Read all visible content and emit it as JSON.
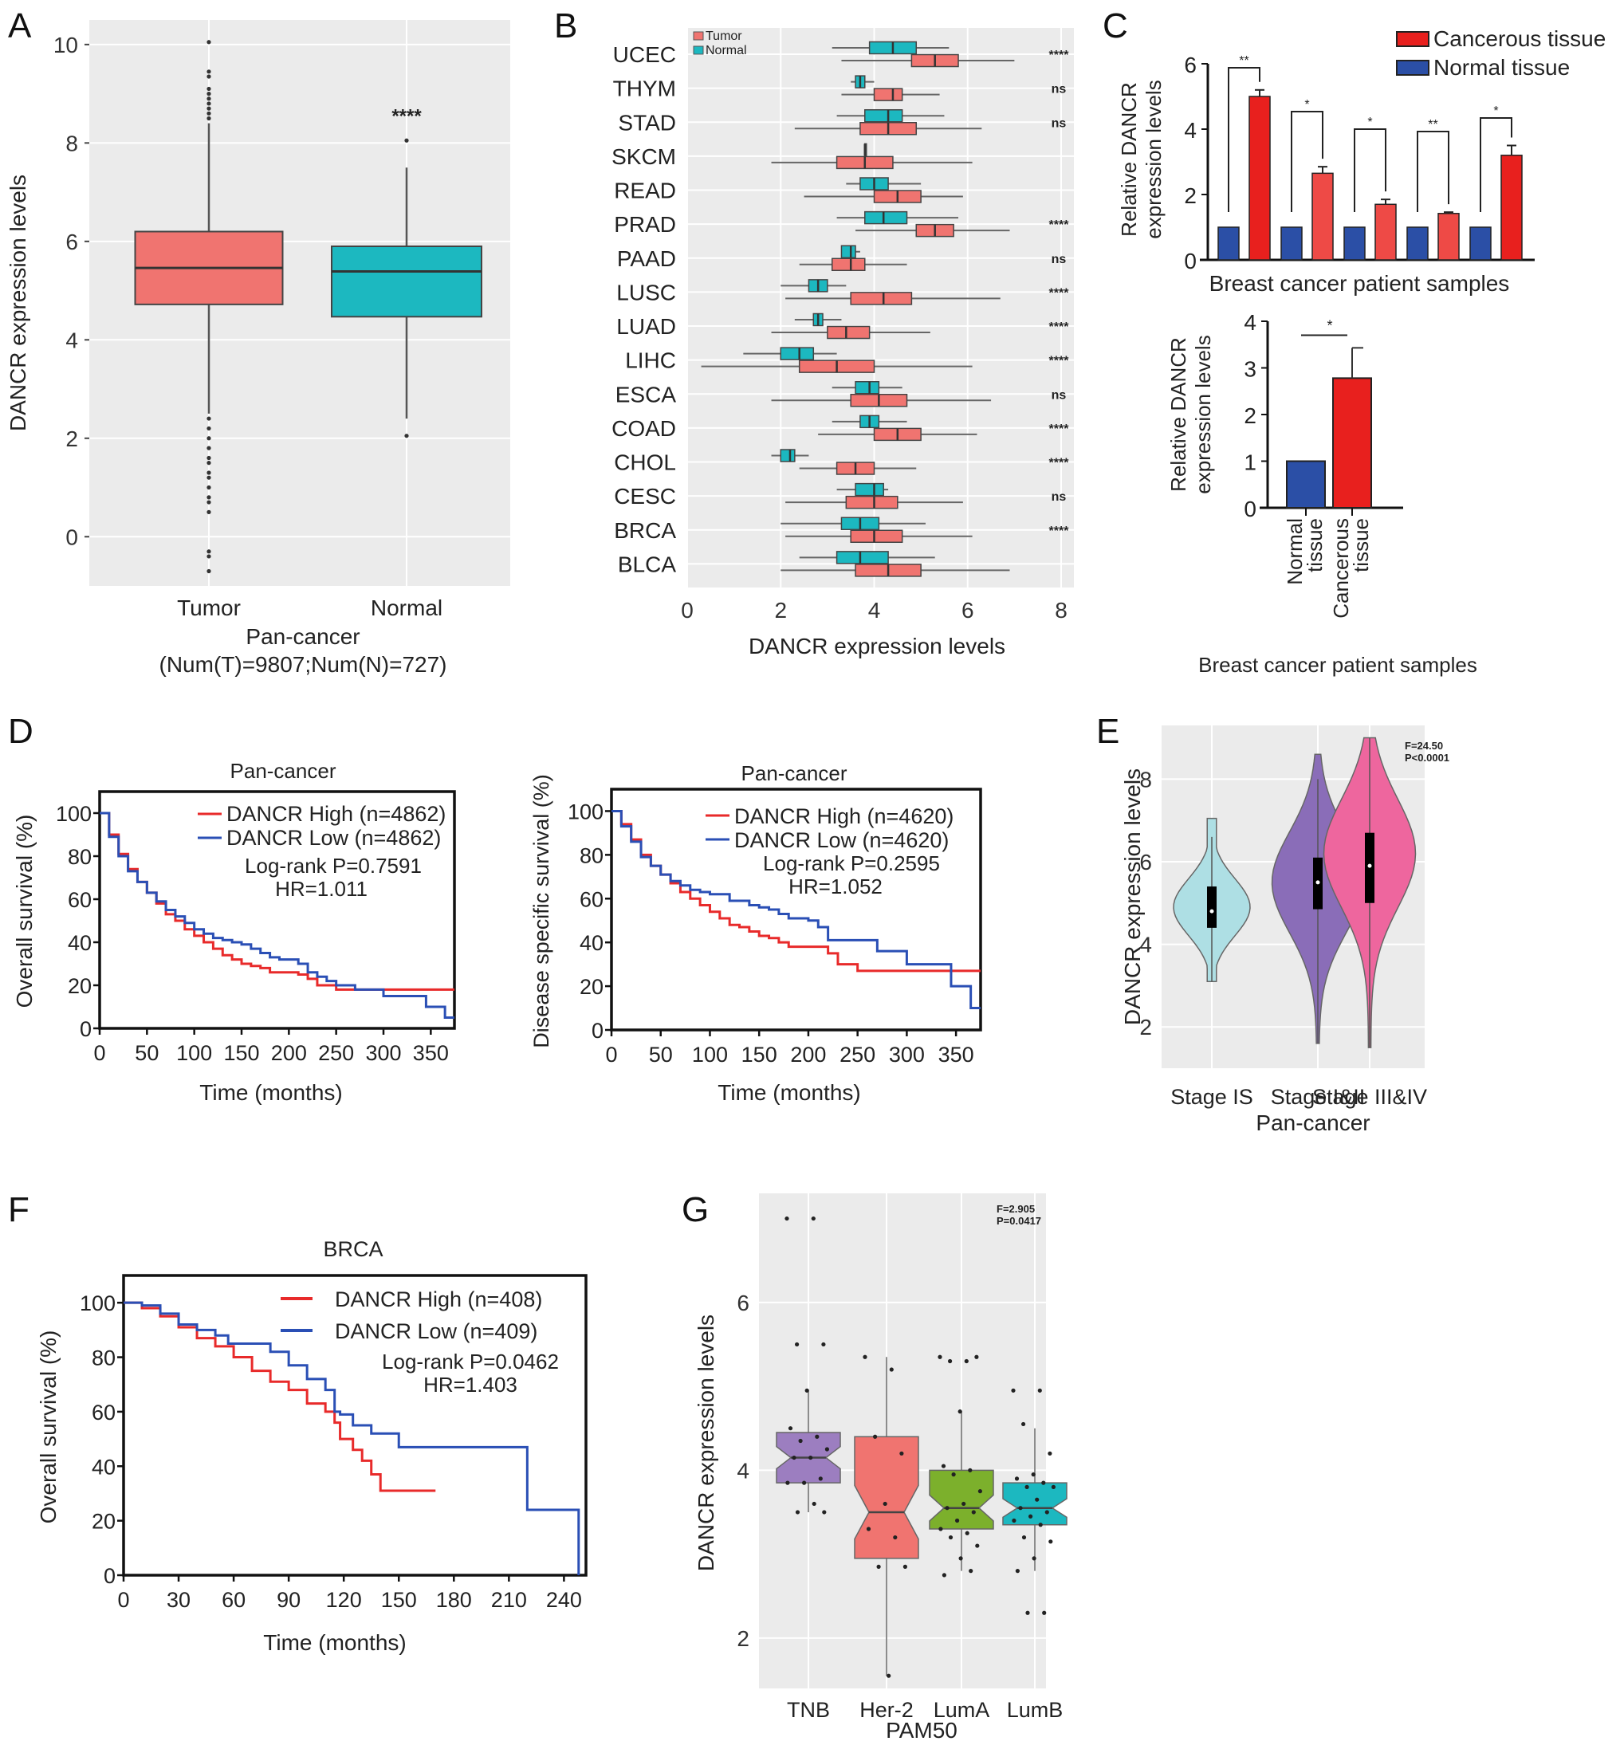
{
  "figure": {
    "panel_letters": [
      "A",
      "B",
      "C",
      "D",
      "E",
      "F",
      "G"
    ]
  },
  "colors": {
    "tumor": "#F07470",
    "normal": "#1CB8C0",
    "cancerous_bar": "#E8201E",
    "cancerous_bar_light": "#EE4A46",
    "normal_bar": "#2B4FA6",
    "km_high": "#E82A2A",
    "km_low": "#2A4FB5",
    "ggplot_bg": "#EBEBEB",
    "violin_is": "#AEDFE4",
    "violin_i_ii": "#8A6DB8",
    "violin_iii_iv": "#EE669E",
    "g_tnb": "#9C7EC0",
    "g_her2": "#F07470",
    "g_luma": "#7CB02C",
    "g_lumb": "#1CB8C0"
  },
  "chart_data": [
    {
      "id": "A",
      "type": "box",
      "title": "",
      "xlabel": "Pan-cancer",
      "xlabel2": "(Num(T)=9807;Num(N)=727)",
      "ylabel": "DANCR expression levels",
      "ylim": [
        -1,
        10.5
      ],
      "yticks": [
        0,
        2,
        4,
        6,
        8,
        10
      ],
      "categories": [
        "Tumor",
        "Normal"
      ],
      "boxes": [
        {
          "name": "Tumor",
          "q1": 4.72,
          "median": 5.46,
          "q3": 6.2,
          "whisker_low": 2.5,
          "whisker_high": 8.4,
          "outliers": [
            10.05,
            9.45,
            9.35,
            9.1,
            9.0,
            8.9,
            8.8,
            8.7,
            8.6,
            8.5,
            2.4,
            2.2,
            2.0,
            1.8,
            1.6,
            1.5,
            1.3,
            1.2,
            1.0,
            0.8,
            0.7,
            0.5,
            -0.3,
            -0.4,
            -0.7
          ]
        },
        {
          "name": "Normal",
          "q1": 4.47,
          "median": 5.39,
          "q3": 5.9,
          "whisker_low": 2.4,
          "whisker_high": 7.5,
          "outliers": [
            8.05,
            2.05
          ]
        }
      ],
      "annotation": "****",
      "annotation_y": 8.55
    },
    {
      "id": "B",
      "type": "box",
      "orientation": "horizontal",
      "xlabel": "DANCR expression levels",
      "xlim": [
        0,
        8.2
      ],
      "xticks": [
        0,
        2,
        4,
        6,
        8
      ],
      "legend": [
        "Tumor",
        "Normal"
      ],
      "legend_position": "top-left",
      "categories": [
        "UCEC",
        "THYM",
        "STAD",
        "SKCM",
        "READ",
        "PRAD",
        "PAAD",
        "LUSC",
        "LUAD",
        "LIHC",
        "ESCA",
        "COAD",
        "CHOL",
        "CESC",
        "BRCA",
        "BLCA"
      ],
      "significance": [
        "****",
        "ns",
        "ns",
        "",
        "",
        "****",
        "ns",
        "****",
        "****",
        "****",
        "ns",
        "****",
        "****",
        "ns",
        "****",
        ""
      ],
      "tumor": [
        {
          "q1": 4.8,
          "median": 5.3,
          "q3": 5.8,
          "lo": 3.3,
          "hi": 7.0
        },
        {
          "q1": 4.0,
          "median": 4.4,
          "q3": 4.6,
          "lo": 3.3,
          "hi": 5.4
        },
        {
          "q1": 3.7,
          "median": 4.3,
          "q3": 4.9,
          "lo": 2.3,
          "hi": 6.3
        },
        {
          "q1": 3.2,
          "median": 3.8,
          "q3": 4.4,
          "lo": 1.8,
          "hi": 6.1
        },
        {
          "q1": 4.0,
          "median": 4.5,
          "q3": 5.0,
          "lo": 2.5,
          "hi": 5.9
        },
        {
          "q1": 4.9,
          "median": 5.3,
          "q3": 5.7,
          "lo": 3.6,
          "hi": 6.9
        },
        {
          "q1": 3.1,
          "median": 3.5,
          "q3": 3.8,
          "lo": 2.4,
          "hi": 4.7
        },
        {
          "q1": 3.5,
          "median": 4.2,
          "q3": 4.8,
          "lo": 2.1,
          "hi": 6.7
        },
        {
          "q1": 3.0,
          "median": 3.4,
          "q3": 3.9,
          "lo": 1.8,
          "hi": 5.2
        },
        {
          "q1": 2.4,
          "median": 3.2,
          "q3": 4.0,
          "lo": 0.3,
          "hi": 6.1
        },
        {
          "q1": 3.5,
          "median": 4.1,
          "q3": 4.7,
          "lo": 1.8,
          "hi": 6.5
        },
        {
          "q1": 4.0,
          "median": 4.5,
          "q3": 5.0,
          "lo": 2.8,
          "hi": 6.2
        },
        {
          "q1": 3.2,
          "median": 3.6,
          "q3": 4.0,
          "lo": 2.4,
          "hi": 4.9
        },
        {
          "q1": 3.4,
          "median": 4.0,
          "q3": 4.5,
          "lo": 2.1,
          "hi": 5.9
        },
        {
          "q1": 3.5,
          "median": 4.0,
          "q3": 4.6,
          "lo": 2.1,
          "hi": 6.1
        },
        {
          "q1": 3.6,
          "median": 4.3,
          "q3": 5.0,
          "lo": 2.0,
          "hi": 6.9
        }
      ],
      "normal": [
        {
          "q1": 3.9,
          "median": 4.4,
          "q3": 4.9,
          "lo": 3.1,
          "hi": 5.6
        },
        {
          "q1": 3.6,
          "median": 3.7,
          "q3": 3.8,
          "lo": 3.5,
          "hi": 4.0
        },
        {
          "q1": 3.8,
          "median": 4.3,
          "q3": 4.6,
          "lo": 3.2,
          "hi": 5.5
        },
        {
          "q1": 3.8,
          "median": 3.8,
          "q3": 3.8,
          "lo": 3.8,
          "hi": 3.8
        },
        {
          "q1": 3.7,
          "median": 4.0,
          "q3": 4.3,
          "lo": 3.4,
          "hi": 5.0
        },
        {
          "q1": 3.8,
          "median": 4.2,
          "q3": 4.7,
          "lo": 3.2,
          "hi": 5.8
        },
        {
          "q1": 3.3,
          "median": 3.5,
          "q3": 3.6,
          "lo": 3.3,
          "hi": 3.7
        },
        {
          "q1": 2.6,
          "median": 2.8,
          "q3": 3.0,
          "lo": 2.0,
          "hi": 3.4
        },
        {
          "q1": 2.7,
          "median": 2.8,
          "q3": 2.9,
          "lo": 2.3,
          "hi": 3.3
        },
        {
          "q1": 2.0,
          "median": 2.4,
          "q3": 2.7,
          "lo": 1.2,
          "hi": 3.2
        },
        {
          "q1": 3.6,
          "median": 3.9,
          "q3": 4.1,
          "lo": 3.1,
          "hi": 4.6
        },
        {
          "q1": 3.7,
          "median": 3.9,
          "q3": 4.1,
          "lo": 3.1,
          "hi": 4.7
        },
        {
          "q1": 2.0,
          "median": 2.2,
          "q3": 2.3,
          "lo": 1.8,
          "hi": 2.6
        },
        {
          "q1": 3.6,
          "median": 4.0,
          "q3": 4.2,
          "lo": 3.2,
          "hi": 4.3
        },
        {
          "q1": 3.3,
          "median": 3.7,
          "q3": 4.1,
          "lo": 2.0,
          "hi": 5.1
        },
        {
          "q1": 3.2,
          "median": 3.7,
          "q3": 4.3,
          "lo": 2.4,
          "hi": 5.3
        }
      ]
    },
    {
      "id": "C1",
      "type": "bar",
      "xlabel": "Breast cancer patient samples",
      "ylabel": "Relative DANCR expression levels",
      "ylim": [
        0,
        6
      ],
      "yticks": [
        0,
        2,
        4,
        6
      ],
      "legend": [
        "Cancerous tissue",
        "Normal tissue"
      ],
      "legend_position": "top-right",
      "series": [
        {
          "name": "Normal tissue",
          "values": [
            1,
            1,
            1,
            1,
            1
          ]
        },
        {
          "name": "Cancerous tissue",
          "values": [
            5.0,
            2.65,
            1.7,
            1.42,
            3.2
          ],
          "errors": [
            0.2,
            0.2,
            0.15,
            0.04,
            0.3
          ]
        }
      ],
      "significance": [
        "**",
        "*",
        "*",
        "**",
        "*"
      ]
    },
    {
      "id": "C2",
      "type": "bar",
      "xlabel": "Breast cancer patient samples",
      "ylabel": "Relative DANCR expression levels",
      "ylim": [
        0,
        4
      ],
      "yticks": [
        0,
        1,
        2,
        3,
        4
      ],
      "categories": [
        "Normal tissue",
        "Cancerous tissue"
      ],
      "values": [
        1.0,
        2.78
      ],
      "errors": [
        0,
        0.65
      ],
      "significance": "*"
    },
    {
      "id": "D1",
      "type": "line",
      "title": "Pan-cancer",
      "xlabel": "Time (months)",
      "ylabel": "Overall survival (%)",
      "xlim": [
        0,
        375
      ],
      "ylim": [
        0,
        110
      ],
      "xticks": [
        0,
        50,
        100,
        150,
        200,
        250,
        300,
        350
      ],
      "yticks": [
        0,
        20,
        40,
        60,
        80,
        100
      ],
      "legend_position": "top-right",
      "annotations": [
        "Log-rank P=0.7591",
        "HR=1.011"
      ],
      "series": [
        {
          "name": "DANCR High (n=4862)",
          "x": [
            0,
            10,
            20,
            30,
            40,
            50,
            60,
            70,
            80,
            90,
            100,
            110,
            120,
            130,
            140,
            150,
            160,
            170,
            180,
            200,
            210,
            220,
            230,
            250,
            270,
            300,
            375
          ],
          "y": [
            100,
            90,
            81,
            74,
            68,
            63,
            58,
            53,
            50,
            46,
            43,
            40,
            37,
            34,
            32,
            30,
            29,
            28,
            26,
            26,
            25,
            23,
            20,
            18,
            18,
            18,
            18
          ]
        },
        {
          "name": "DANCR Low (n=4862)",
          "x": [
            0,
            10,
            20,
            30,
            40,
            50,
            60,
            70,
            80,
            90,
            100,
            110,
            120,
            130,
            140,
            150,
            160,
            170,
            180,
            190,
            200,
            210,
            220,
            230,
            240,
            250,
            270,
            300,
            345,
            365,
            375
          ],
          "y": [
            100,
            89,
            80,
            73,
            68,
            63,
            59,
            55,
            52,
            49,
            46,
            44,
            42,
            41,
            40,
            39,
            37,
            35,
            33,
            32,
            32,
            30,
            26,
            24,
            22,
            20,
            18,
            15,
            10,
            5,
            5
          ]
        }
      ]
    },
    {
      "id": "D2",
      "type": "line",
      "title": "Pan-cancer",
      "xlabel": "Time (months)",
      "ylabel": "Disease specific survival (%)",
      "xlim": [
        0,
        375
      ],
      "ylim": [
        0,
        110
      ],
      "xticks": [
        0,
        50,
        100,
        150,
        200,
        250,
        300,
        350
      ],
      "yticks": [
        0,
        20,
        40,
        60,
        80,
        100
      ],
      "legend_position": "top-right",
      "annotations": [
        "Log-rank P=0.2595",
        "HR=1.052"
      ],
      "series": [
        {
          "name": "DANCR High (n=4620)",
          "x": [
            0,
            10,
            20,
            30,
            40,
            50,
            60,
            70,
            80,
            90,
            100,
            110,
            120,
            130,
            140,
            150,
            160,
            170,
            180,
            200,
            210,
            220,
            230,
            240,
            250,
            300,
            375
          ],
          "y": [
            100,
            94,
            87,
            80,
            75,
            71,
            67,
            63,
            60,
            57,
            54,
            51,
            48,
            47,
            45,
            43,
            42,
            40,
            38,
            38,
            38,
            35,
            30,
            30,
            27,
            27,
            27
          ]
        },
        {
          "name": "DANCR Low (n=4620)",
          "x": [
            0,
            10,
            20,
            30,
            40,
            50,
            60,
            70,
            80,
            90,
            100,
            120,
            140,
            150,
            160,
            170,
            180,
            200,
            210,
            220,
            270,
            300,
            345,
            365,
            375
          ],
          "y": [
            100,
            93,
            86,
            79,
            75,
            71,
            68,
            66,
            64,
            63,
            62,
            59,
            57,
            56,
            55,
            53,
            51,
            50,
            47,
            41,
            36,
            30,
            20,
            10,
            10
          ]
        }
      ]
    },
    {
      "id": "E",
      "type": "violin",
      "xlabel": "Pan-cancer",
      "ylabel": "DANCR expression levels",
      "ylim": [
        1.0,
        9.3
      ],
      "yticks": [
        2,
        4,
        6,
        8
      ],
      "annotation": [
        "F=24.50",
        "P<0.0001"
      ],
      "categories": [
        "Stage IS",
        "Stage I&II",
        "Stage III&IV"
      ],
      "violins": [
        {
          "min": 3.1,
          "max": 7.05,
          "q1": 4.4,
          "median": 4.8,
          "q3": 5.4,
          "whisker_high": 6.6,
          "peak": 4.9
        },
        {
          "min": 1.6,
          "max": 8.6,
          "q1": 4.85,
          "median": 5.5,
          "q3": 6.1,
          "whisker_high": 8.0,
          "peak": 5.5
        },
        {
          "min": 1.5,
          "max": 9.0,
          "q1": 5.0,
          "median": 5.9,
          "q3": 6.7,
          "whisker_high": 9.0,
          "peak": 6.2
        }
      ]
    },
    {
      "id": "F",
      "type": "line",
      "title": "BRCA",
      "xlabel": "Time (months)",
      "ylabel": "Overall survival (%)",
      "xlim": [
        0,
        252
      ],
      "ylim": [
        0,
        110
      ],
      "xticks": [
        0,
        30,
        60,
        90,
        120,
        150,
        180,
        210,
        240
      ],
      "yticks": [
        0,
        20,
        40,
        60,
        80,
        100
      ],
      "legend_position": "top-right",
      "annotations": [
        "Log-rank P=0.0462",
        "HR=1.403"
      ],
      "series": [
        {
          "name": "DANCR High (n=408)",
          "x": [
            0,
            10,
            20,
            30,
            40,
            50,
            60,
            70,
            80,
            90,
            100,
            110,
            115,
            118,
            125,
            130,
            135,
            140,
            170
          ],
          "y": [
            100,
            98,
            95,
            91,
            87,
            84,
            80,
            75,
            71,
            68,
            63,
            60,
            56,
            50,
            46,
            42,
            37,
            31,
            31
          ]
        },
        {
          "name": "DANCR Low (n=409)",
          "x": [
            0,
            10,
            20,
            30,
            40,
            50,
            57,
            75,
            80,
            90,
            100,
            110,
            115,
            118,
            125,
            135,
            148,
            150,
            215,
            220,
            247,
            248
          ],
          "y": [
            100,
            99,
            96,
            92,
            90,
            88,
            85,
            85,
            82,
            77,
            72,
            68,
            60,
            59,
            55,
            52,
            52,
            47,
            47,
            24,
            24,
            0
          ]
        }
      ]
    },
    {
      "id": "G",
      "type": "box",
      "notched": true,
      "xlabel": "PAM50",
      "ylabel": "DANCR expression levels",
      "ylim": [
        1.4,
        7.3
      ],
      "yticks": [
        2,
        4,
        6
      ],
      "annotation": [
        "F=2.905",
        "P=0.0417"
      ],
      "categories": [
        "TNB",
        "Her-2",
        "LumA",
        "LumB"
      ],
      "boxes": [
        {
          "name": "TNB",
          "q1": 3.85,
          "median": 4.15,
          "q3": 4.45,
          "lo": 3.5,
          "hi": 4.95,
          "points": [
            7.0,
            7.0,
            5.5,
            5.5,
            4.95,
            4.5,
            4.4,
            4.35,
            4.25,
            4.15,
            4.15,
            3.9,
            3.85,
            3.85,
            3.6,
            3.5,
            3.5
          ]
        },
        {
          "name": "Her-2",
          "q1": 2.95,
          "median": 3.5,
          "q3": 4.4,
          "lo": 1.55,
          "hi": 5.35,
          "points": [
            5.35,
            5.2,
            4.4,
            4.2,
            3.6,
            3.3,
            3.2,
            2.85,
            2.85,
            1.55
          ]
        },
        {
          "name": "LumA",
          "q1": 3.3,
          "median": 3.55,
          "q3": 4.0,
          "lo": 2.8,
          "hi": 4.7,
          "points": [
            5.35,
            5.3,
            5.3,
            5.35,
            4.7,
            4.05,
            4.0,
            3.95,
            3.75,
            3.6,
            3.55,
            3.5,
            3.4,
            3.3,
            3.25,
            3.2,
            3.1,
            2.95,
            2.75,
            2.8
          ]
        },
        {
          "name": "LumB",
          "q1": 3.35,
          "median": 3.55,
          "q3": 3.85,
          "lo": 2.8,
          "hi": 4.5,
          "points": [
            4.95,
            4.95,
            4.55,
            4.2,
            3.95,
            3.9,
            3.85,
            3.8,
            3.8,
            3.65,
            3.55,
            3.5,
            3.45,
            3.4,
            3.35,
            3.2,
            3.15,
            2.95,
            2.8,
            2.3,
            2.3
          ]
        }
      ]
    }
  ]
}
